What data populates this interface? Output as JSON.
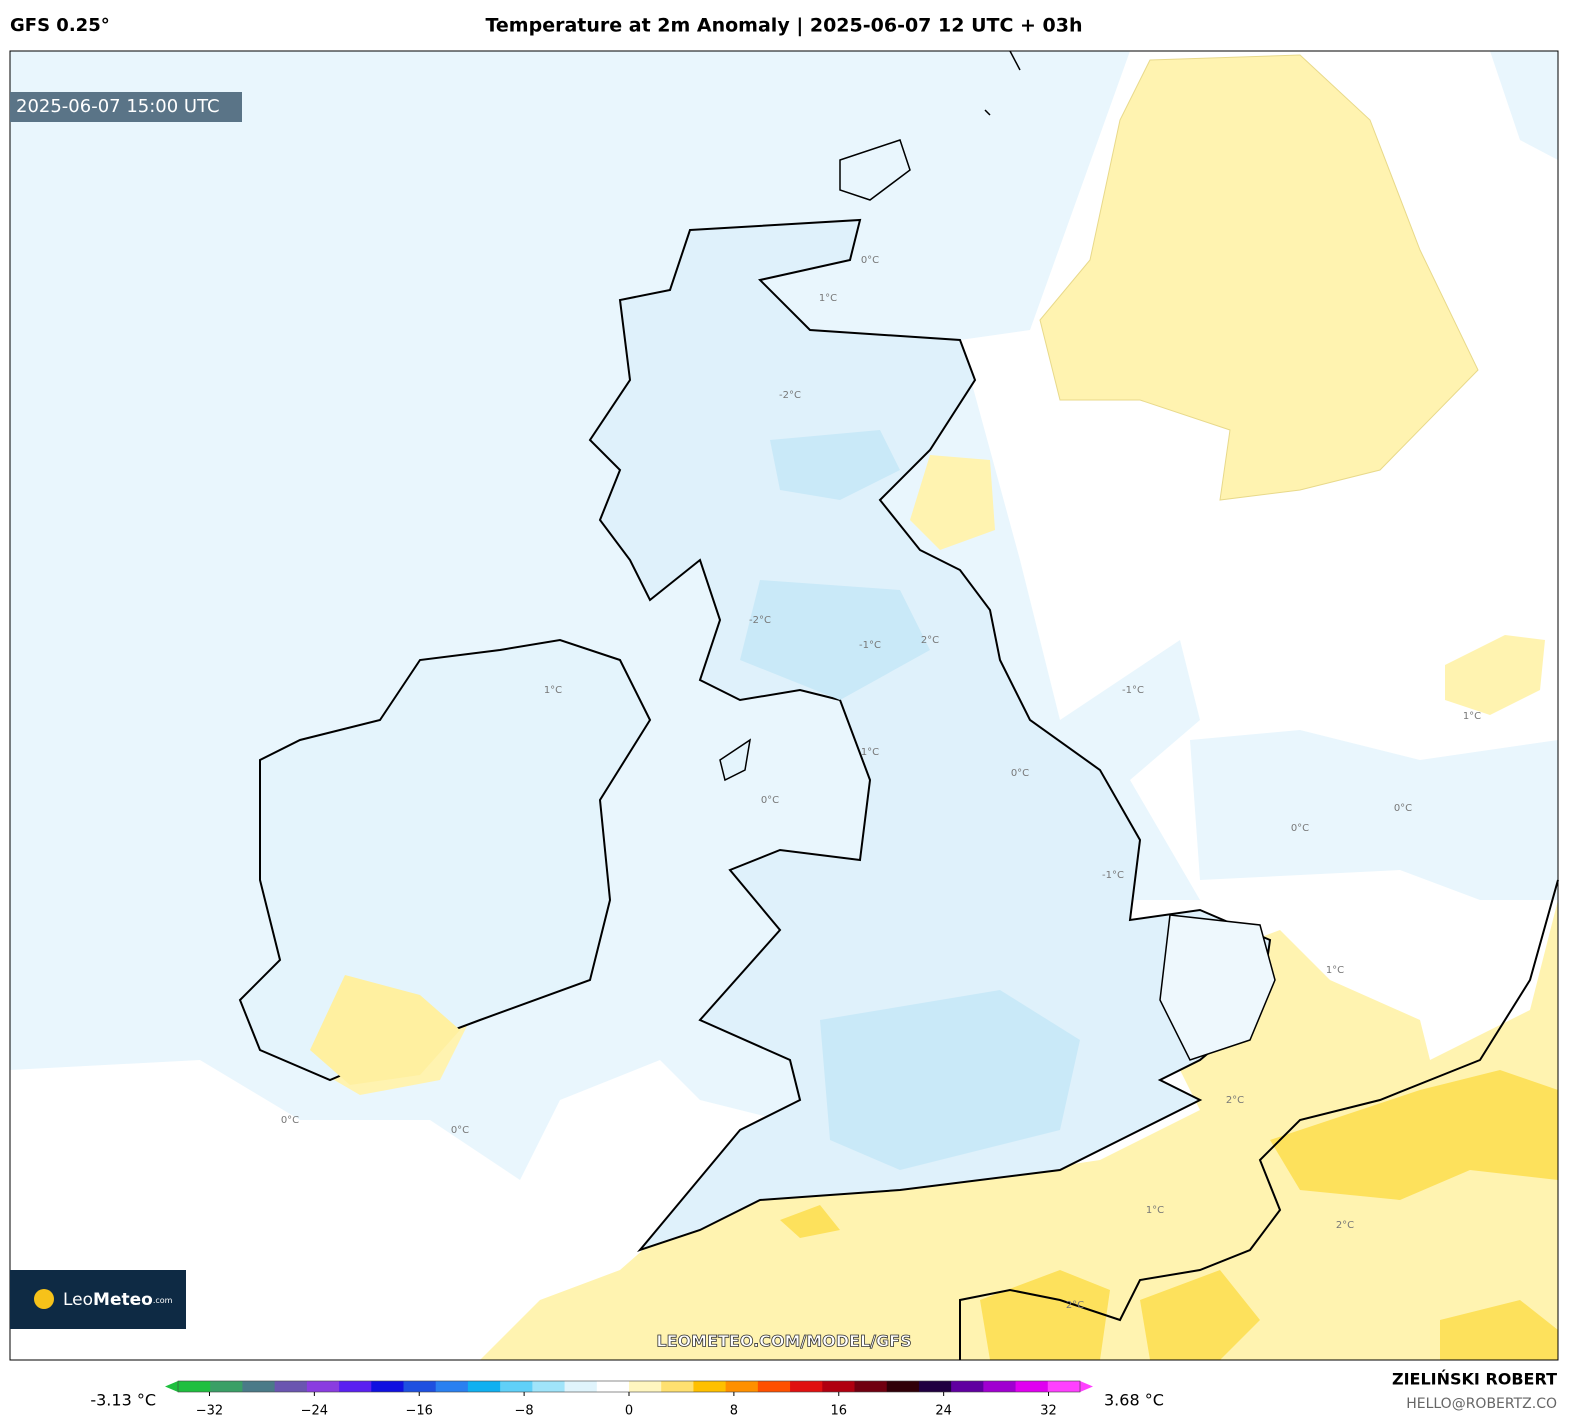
{
  "header": {
    "model": "GFS 0.25°",
    "title": "Temperature at 2m Anomaly | 2025-06-07 12 UTC + 03h"
  },
  "map": {
    "valid_time": "2025-06-07 15:00 UTC",
    "watermark": "LEOMETEO.COM/MODEL/GFS",
    "contour_labels": [
      "0°C",
      "1°C",
      "-2°C",
      "-2°C",
      "2°C",
      "1°C",
      "-1°C",
      "1°C",
      "0°C",
      "0°C",
      "0°C",
      "0°C",
      "-1°C",
      "1°C",
      "2°C",
      "1°C",
      "2°C",
      "2°C",
      "0°C",
      "0°C",
      "-1°C",
      "1°C"
    ]
  },
  "logo": {
    "leo": "Leo",
    "meteo": "Meteo",
    "com": ".com"
  },
  "colorbar": {
    "min_label": "-3.13 °C",
    "max_label": "3.68 °C",
    "range": [
      -34.4,
      34.4
    ],
    "ticks": [
      {
        "value": -32,
        "label": "−32"
      },
      {
        "value": -24,
        "label": "−24"
      },
      {
        "value": -16,
        "label": "−16"
      },
      {
        "value": -8,
        "label": "−8"
      },
      0,
      8,
      16,
      24,
      32
    ]
  },
  "credits": {
    "author": "ZIELIŃSKI ROBERT",
    "email": "HELLO@ROBERTZ.CO"
  }
}
